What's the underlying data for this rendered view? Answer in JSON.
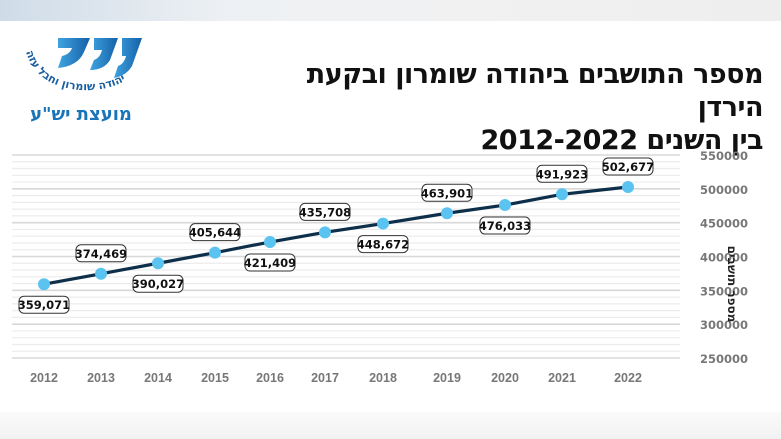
{
  "header": {
    "title_line1": "מספר התושבים ביהודה שומרון ובקעת הירדן",
    "title_line2": "בין השנים 2012-2022"
  },
  "logo": {
    "mark_text": "ישע",
    "arc_text": "יהודה שומרון וחבל עזה",
    "org_name": "מועצת יש\"ע",
    "brand_color": "#1a75b8"
  },
  "colors": {
    "line": "#0d2f4a",
    "marker": "#5bc3f0",
    "grid_major": "#d8d8d8",
    "grid_minor": "#ececec",
    "tick_text": "#777777"
  },
  "chart_data": {
    "type": "line",
    "title": "מספר התושבים ביהודה שומרון ובקעת הירדן בין השנים 2012-2022",
    "xlabel": "",
    "ylabel": "מספר תושבים",
    "categories": [
      "2012",
      "2013",
      "2014",
      "2015",
      "2016",
      "2017",
      "2018",
      "2019",
      "2020",
      "2021",
      "2022"
    ],
    "series": [
      {
        "name": "מספר תושבים",
        "values": [
          359071,
          374469,
          390027,
          405644,
          421409,
          435708,
          448672,
          463901,
          476033,
          491923,
          502677
        ],
        "labels": [
          "359,071",
          "374,469",
          "390,027",
          "405,644",
          "421,409",
          "435,708",
          "448,672",
          "463,901",
          "476,033",
          "491,923",
          "502,677"
        ]
      }
    ],
    "ylim": [
      250000,
      550000
    ],
    "yticks": [
      "550000",
      "500000",
      "450000",
      "400000",
      "350000",
      "300000",
      "250000"
    ],
    "y_axis_position": "right",
    "grid": true,
    "legend": "none"
  }
}
